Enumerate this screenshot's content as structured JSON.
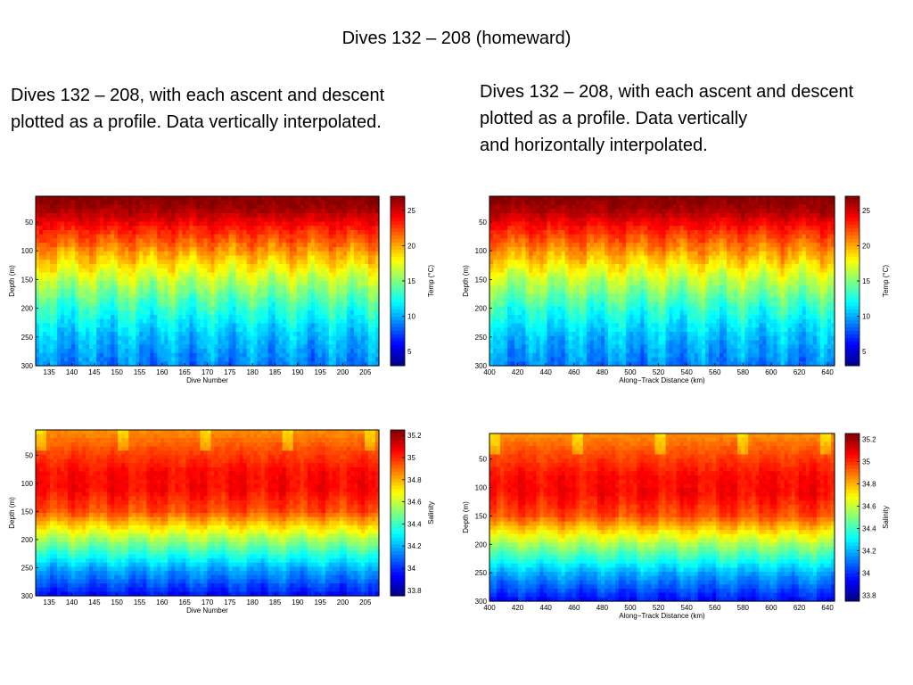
{
  "slide": {
    "title": "Dives 132 – 208 (homeward)",
    "caption_left": [
      "Dives 132 – 208, with each ascent and descent",
      "plotted as a profile.  Data vertically interpolated."
    ],
    "caption_right": [
      "Dives 132 – 208, with each ascent and descent",
      "plotted as a profile.  Data vertically",
      "and horizontally interpolated."
    ]
  },
  "chart_data": [
    {
      "id": "temp-dive",
      "type": "heatmap",
      "title": "",
      "xlabel": "Dive Number",
      "ylabel": "Depth (m)",
      "colorbar_label": "Temp (°C)",
      "xlim": [
        132,
        208
      ],
      "ylim": [
        300,
        5
      ],
      "xticks": [
        135,
        140,
        145,
        150,
        155,
        160,
        165,
        170,
        175,
        180,
        185,
        190,
        195,
        200,
        205
      ],
      "yticks": [
        50,
        100,
        150,
        200,
        250,
        300
      ],
      "clim": [
        3,
        27
      ],
      "cticks": [
        5,
        10,
        15,
        20,
        25
      ],
      "variable": "temperature",
      "depth_profile": {
        "depth": [
          5,
          30,
          60,
          100,
          150,
          200,
          250,
          300
        ],
        "value": [
          27,
          26,
          23.5,
          20.5,
          16.5,
          13,
          10.5,
          9
        ]
      }
    },
    {
      "id": "temp-distance",
      "type": "heatmap",
      "title": "",
      "xlabel": "Along−Track Distance (km)",
      "ylabel": "Depth (m)",
      "colorbar_label": "Temp (°C)",
      "xlim": [
        400,
        645
      ],
      "ylim": [
        300,
        5
      ],
      "xticks": [
        400,
        420,
        440,
        460,
        480,
        500,
        520,
        540,
        560,
        580,
        600,
        620,
        640
      ],
      "yticks": [
        50,
        100,
        150,
        200,
        250,
        300
      ],
      "clim": [
        3,
        27
      ],
      "cticks": [
        5,
        10,
        15,
        20,
        25
      ],
      "variable": "temperature",
      "depth_profile": {
        "depth": [
          5,
          30,
          60,
          100,
          150,
          200,
          250,
          300
        ],
        "value": [
          27,
          26,
          23.5,
          20.5,
          16.5,
          13,
          10.5,
          9
        ]
      }
    },
    {
      "id": "sal-dive",
      "type": "heatmap",
      "title": "",
      "xlabel": "Dive Number",
      "ylabel": "Depth (m)",
      "colorbar_label": "Salinity",
      "xlim": [
        132,
        208
      ],
      "ylim": [
        300,
        5
      ],
      "xticks": [
        135,
        140,
        145,
        150,
        155,
        160,
        165,
        170,
        175,
        180,
        185,
        190,
        195,
        200,
        205
      ],
      "yticks": [
        50,
        100,
        150,
        200,
        250,
        300
      ],
      "clim": [
        33.75,
        35.25
      ],
      "cticks": [
        33.8,
        34,
        34.2,
        34.4,
        34.6,
        34.8,
        35,
        35.2
      ],
      "variable": "salinity",
      "depth_profile": {
        "depth": [
          5,
          40,
          80,
          110,
          150,
          200,
          250,
          300
        ],
        "value": [
          34.85,
          34.95,
          35.05,
          35.06,
          34.95,
          34.55,
          34.2,
          33.95
        ]
      }
    },
    {
      "id": "sal-distance",
      "type": "heatmap",
      "title": "",
      "xlabel": "Along−Track Distance (km)",
      "ylabel": "Depth (m)",
      "colorbar_label": "Salinity",
      "xlim": [
        400,
        645
      ],
      "ylim": [
        300,
        5
      ],
      "xticks": [
        400,
        420,
        440,
        460,
        480,
        500,
        520,
        540,
        560,
        580,
        600,
        620,
        640
      ],
      "yticks": [
        50,
        100,
        150,
        200,
        250,
        300
      ],
      "clim": [
        33.75,
        35.25
      ],
      "cticks": [
        33.8,
        34,
        34.2,
        34.4,
        34.6,
        34.8,
        35,
        35.2
      ],
      "variable": "salinity",
      "depth_profile": {
        "depth": [
          5,
          40,
          80,
          110,
          150,
          200,
          250,
          300
        ],
        "value": [
          34.85,
          34.95,
          35.05,
          35.06,
          34.95,
          34.55,
          34.2,
          33.95
        ]
      }
    }
  ]
}
